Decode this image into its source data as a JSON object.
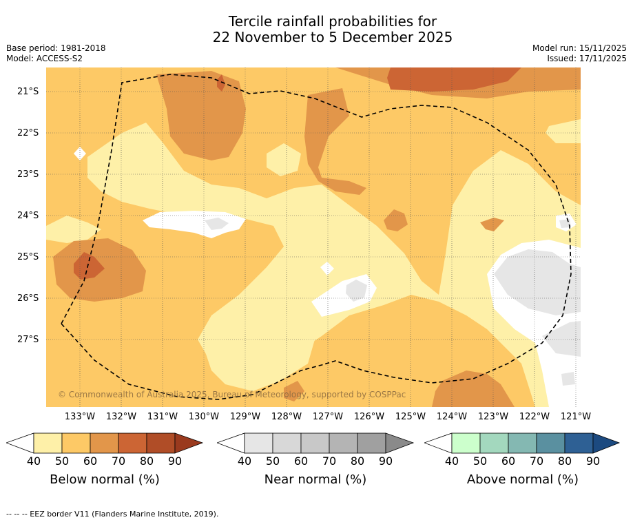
{
  "title": {
    "line1": "Tercile rainfall probabilities for",
    "line2": "22 November to 5 December 2025"
  },
  "meta": {
    "base_period": "Base period: 1981-2018",
    "model": "Model: ACCESS-S2",
    "model_run": "Model run: 15/11/2025",
    "issued": "Issued: 17/11/2025"
  },
  "copyright": "© Commonwealth of Australia 2025, Bureau of Meteorology, supported by COSPPac",
  "axes": {
    "latitudes": [
      "21°S",
      "22°S",
      "23°S",
      "24°S",
      "25°S",
      "26°S",
      "27°S"
    ],
    "longitudes": [
      "133°W",
      "132°W",
      "131°W",
      "130°W",
      "129°W",
      "128°W",
      "127°W",
      "126°W",
      "125°W",
      "124°W",
      "123°W",
      "122°W",
      "121°W"
    ]
  },
  "legend": {
    "ticks": [
      "40",
      "50",
      "60",
      "70",
      "80",
      "90"
    ],
    "below": {
      "label": "Below normal (%)",
      "colors": [
        "#fef0a8",
        "#fdc966",
        "#e2964a",
        "#cc6534",
        "#b04d27",
        "#9a3a1e"
      ]
    },
    "near": {
      "label": "Near normal (%)",
      "colors": [
        "#e6e6e6",
        "#d8d8d8",
        "#c8c8c8",
        "#b4b4b4",
        "#a0a0a0",
        "#8a8a8a"
      ]
    },
    "above": {
      "label": "Above normal (%)",
      "colors": [
        "#ccffcc",
        "#a3d8be",
        "#84b8b2",
        "#5a90a0",
        "#2e6094",
        "#1c4a80"
      ]
    }
  },
  "footer": "--  --  -- EEZ border V11 (Flanders Marine Institute, 2019)."
}
